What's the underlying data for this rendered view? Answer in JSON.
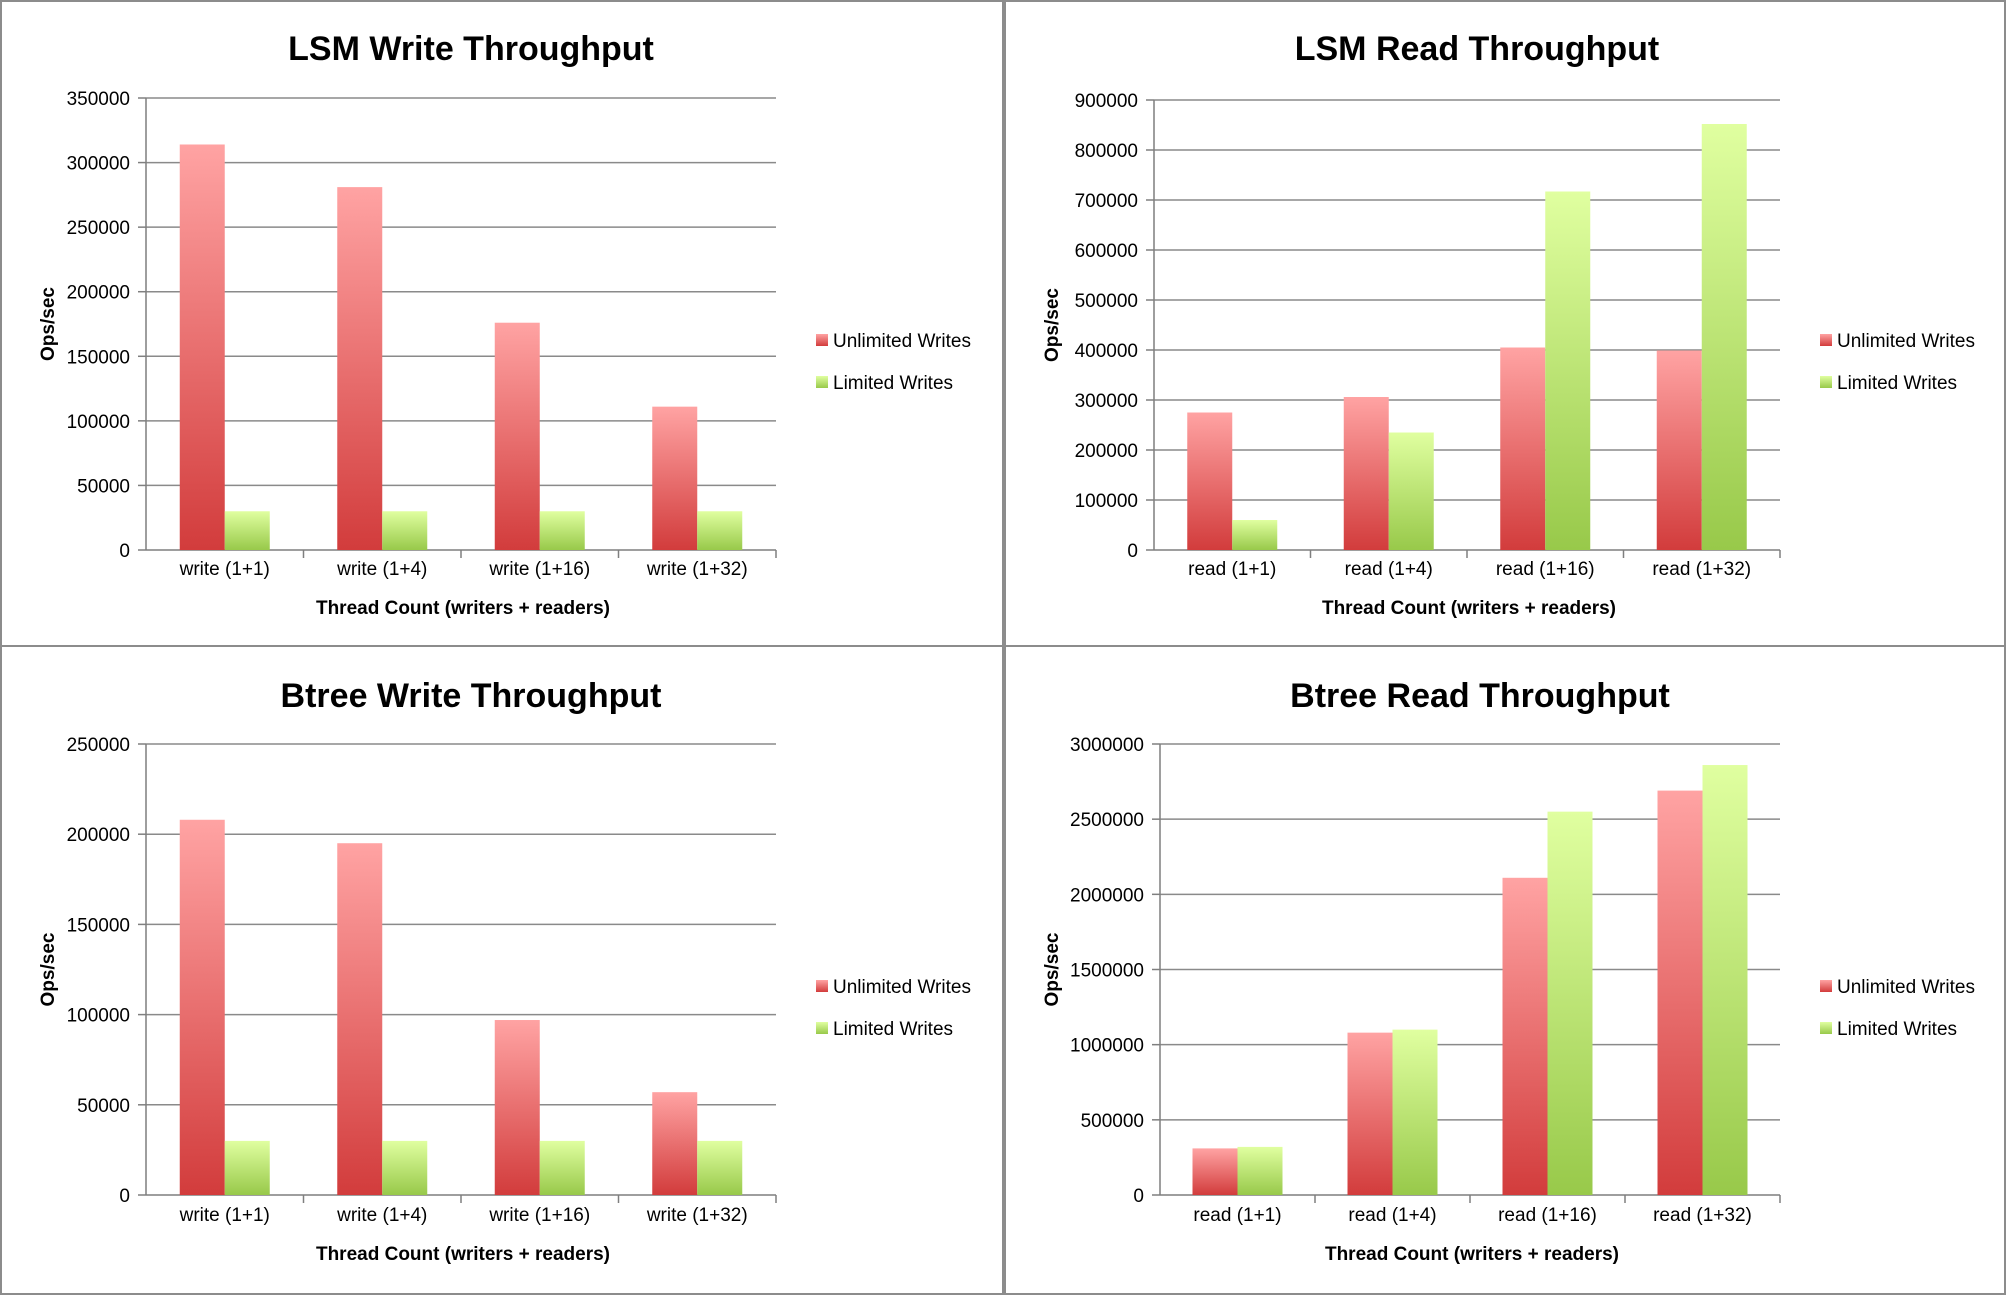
{
  "colors": {
    "unlimited_top": "#ffa3a3",
    "unlimited_bottom": "#d23c3c",
    "limited_top": "#e0ffa0",
    "limited_bottom": "#98c94a",
    "gridline": "#8a8a8a",
    "axis": "#7f7f7f"
  },
  "chart_data": [
    {
      "type": "bar",
      "title": "LSM Write Throughput",
      "xlabel": "Thread Count (writers + readers)",
      "ylabel": "Ops/sec",
      "categories": [
        "write (1+1)",
        "write (1+4)",
        "write (1+16)",
        "write (1+32)"
      ],
      "series": [
        {
          "name": "Unlimited Writes",
          "values": [
            314000,
            281000,
            176000,
            111000
          ]
        },
        {
          "name": "Limited Writes",
          "values": [
            30000,
            30000,
            30000,
            30000
          ]
        }
      ],
      "ylim": [
        0,
        350000
      ],
      "yticks": [
        0,
        50000,
        100000,
        150000,
        200000,
        250000,
        300000,
        350000
      ],
      "grid": true,
      "legend": "right"
    },
    {
      "type": "bar",
      "title": "LSM Read Throughput",
      "xlabel": "Thread Count (writers + readers)",
      "ylabel": "Ops/sec",
      "categories": [
        "read (1+1)",
        "read (1+4)",
        "read (1+16)",
        "read (1+32)"
      ],
      "series": [
        {
          "name": "Unlimited Writes",
          "values": [
            275000,
            306000,
            405000,
            399000
          ]
        },
        {
          "name": "Limited Writes",
          "values": [
            60000,
            235000,
            717000,
            852000
          ]
        }
      ],
      "ylim": [
        0,
        900000
      ],
      "yticks": [
        0,
        100000,
        200000,
        300000,
        400000,
        500000,
        600000,
        700000,
        800000,
        900000
      ],
      "grid": true,
      "legend": "right"
    },
    {
      "type": "bar",
      "title": "Btree Write Throughput",
      "xlabel": "Thread Count (writers + readers)",
      "ylabel": "Ops/sec",
      "categories": [
        "write (1+1)",
        "write (1+4)",
        "write (1+16)",
        "write (1+32)"
      ],
      "series": [
        {
          "name": "Unlimited Writes",
          "values": [
            208000,
            195000,
            97000,
            57000
          ]
        },
        {
          "name": "Limited Writes",
          "values": [
            30000,
            30000,
            30000,
            30000
          ]
        }
      ],
      "ylim": [
        0,
        250000
      ],
      "yticks": [
        0,
        50000,
        100000,
        150000,
        200000,
        250000
      ],
      "grid": true,
      "legend": "right"
    },
    {
      "type": "bar",
      "title": "Btree Read Throughput",
      "xlabel": "Thread Count (writers + readers)",
      "ylabel": "Ops/sec",
      "categories": [
        "read (1+1)",
        "read (1+4)",
        "read (1+16)",
        "read (1+32)"
      ],
      "series": [
        {
          "name": "Unlimited Writes",
          "values": [
            310000,
            1080000,
            2110000,
            2690000
          ]
        },
        {
          "name": "Limited Writes",
          "values": [
            320000,
            1100000,
            2550000,
            2860000
          ]
        }
      ],
      "ylim": [
        0,
        3000000
      ],
      "yticks": [
        0,
        500000,
        1000000,
        1500000,
        2000000,
        2500000,
        3000000
      ],
      "grid": true,
      "legend": "right"
    }
  ]
}
